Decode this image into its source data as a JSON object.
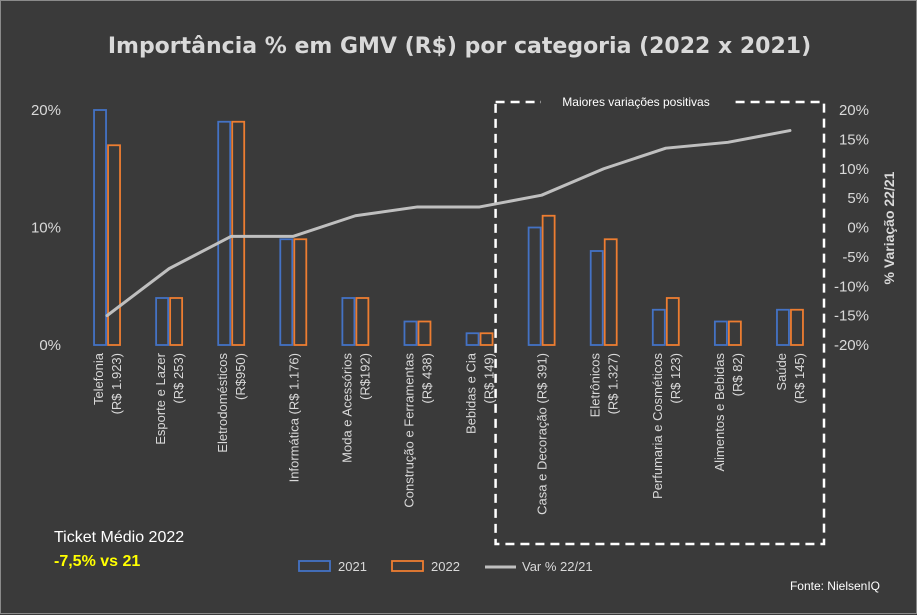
{
  "title": "Importância % em GMV (R$) por categoria (2022 x 2021)",
  "highlight_label": "Maiores variações positivas",
  "ticket": {
    "label": "Ticket Médio 2022",
    "value": "-7,5% vs 21"
  },
  "source": "Fonte: NielsenIQ",
  "colors": {
    "s2021": "#4472c4",
    "s2022": "#ed7d31",
    "line": "#bfbfbf",
    "text": "#d9d9d9",
    "background": "#3a3a3a"
  },
  "chart_data": {
    "type": "bar",
    "title": "Importância % em GMV (R$) por categoria (2022 x 2021)",
    "categories": [
      [
        "Telefonia",
        "(R$ 1.923)"
      ],
      [
        "Esporte e Lazer",
        "(R$ 253)"
      ],
      [
        "Eletrodomésticos",
        "(R$950)"
      ],
      [
        "Informática (R$ 1.176)"
      ],
      [
        "Moda e Acessórios",
        "(R$192)"
      ],
      [
        "Construção e Ferramentas",
        "(R$ 438)"
      ],
      [
        "Bebidas e Cia",
        "(R$ 149)"
      ],
      [
        "Casa e Decoração (R$ 391)"
      ],
      [
        "Eletrônicos",
        "(R$ 1.327)"
      ],
      [
        "Perfumaria e Cosméticos",
        "(R$ 123)"
      ],
      [
        "Alimentos e Bebidas",
        "(R$ 82)"
      ],
      [
        "Saúde",
        "(R$ 145)"
      ]
    ],
    "series": [
      {
        "name": "2021",
        "values": [
          20,
          4,
          19,
          9,
          4,
          2,
          1,
          10,
          8,
          3,
          2,
          3
        ]
      },
      {
        "name": "2022",
        "values": [
          17,
          4,
          19,
          9,
          4,
          2,
          1,
          11,
          9,
          4,
          2,
          3
        ]
      }
    ],
    "line_series": {
      "name": "Var % 22/21",
      "values": [
        -15,
        -7,
        -1.5,
        -1.5,
        2,
        3.5,
        3.5,
        5.5,
        10,
        13.5,
        14.5,
        16.5
      ]
    },
    "y_left": {
      "min": 0,
      "max": 20,
      "ticks": [
        "0%",
        "10%",
        "20%"
      ]
    },
    "y_right": {
      "label": "% Variação 22/21",
      "min": -20,
      "max": 20,
      "ticks": [
        "-20%",
        "-15%",
        "-10%",
        "-5%",
        "0%",
        "5%",
        "10%",
        "15%",
        "20%"
      ]
    },
    "legend": [
      "2021",
      "2022",
      "Var % 22/21"
    ],
    "legend_position": "bottom",
    "grid": false
  }
}
